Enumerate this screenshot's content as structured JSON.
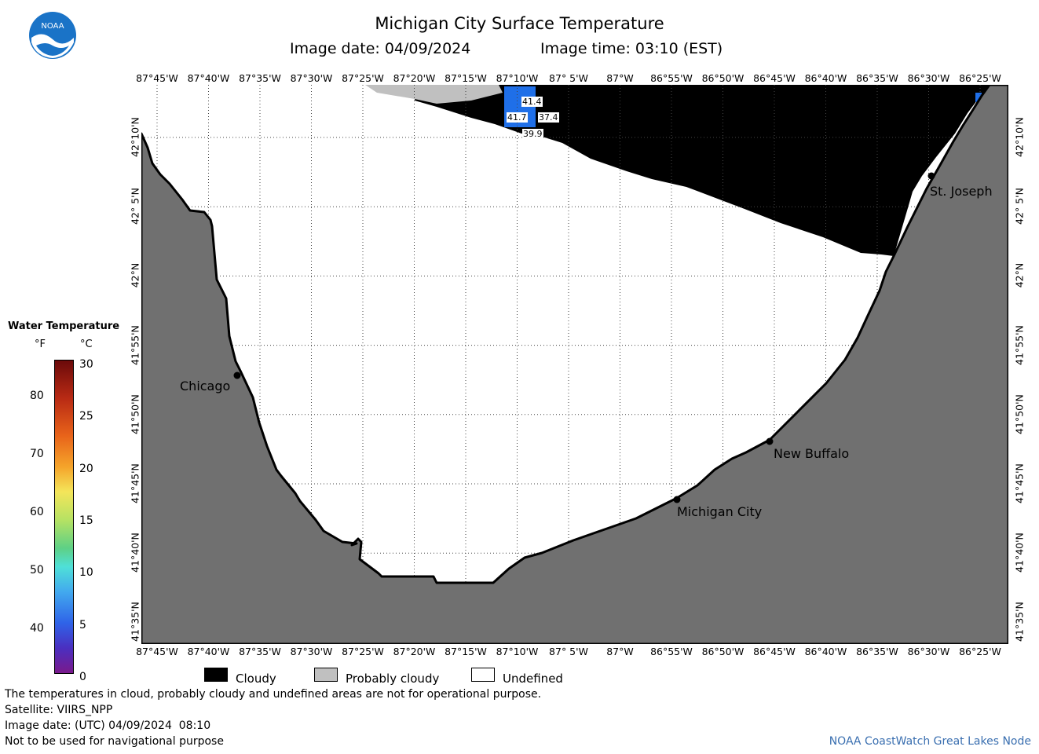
{
  "title": "Michigan City Surface Temperature",
  "image_date_label": "Image date: 04/09/2024",
  "image_time_label": "Image time: 03:10 (EST)",
  "lon_ticks": [
    "87°45'W",
    "87°40'W",
    "87°35'W",
    "87°30'W",
    "87°25'W",
    "87°20'W",
    "87°15'W",
    "87°10'W",
    "87° 5'W",
    "87°W",
    "86°55'W",
    "86°50'W",
    "86°45'W",
    "86°40'W",
    "86°35'W",
    "86°30'W",
    "86°25'W"
  ],
  "lat_ticks": [
    "42°10'N",
    "42° 5'N",
    "42°N",
    "41°55'N",
    "41°50'N",
    "41°45'N",
    "41°40'N",
    "41°35'N"
  ],
  "cities": {
    "chicago": "Chicago",
    "st_joseph": "St. Joseph",
    "new_buffalo": "New Buffalo",
    "michigan_city": "Michigan City"
  },
  "sst_values": [
    "41.4",
    "41.7",
    "37.4",
    "39.9"
  ],
  "colorbar": {
    "title": "Water Temperature",
    "unit_f": "°F",
    "unit_c": "°C",
    "f_ticks": [
      "80",
      "70",
      "60",
      "50",
      "40"
    ],
    "c_ticks": [
      "30",
      "25",
      "20",
      "15",
      "10",
      "5",
      "0"
    ]
  },
  "legend": {
    "cloudy": "Cloudy",
    "probably_cloudy": "Probably cloudy",
    "undefined": "Undefined"
  },
  "footer": {
    "disclaimer": "The temperatures in cloud, probably cloudy and undefined areas are not for operational purpose.",
    "satellite": "Satellite: VIIRS_NPP",
    "utc_date": "Image date: (UTC) 04/09/2024  08:10",
    "nav_warning": "Not to be used for navigational purpose",
    "credit": "NOAA CoastWatch Great Lakes Node"
  },
  "logo_text": "NOAA",
  "colors": {
    "land": "#707070",
    "cloud": "#000000",
    "probably_cloudy": "#c0c0c0",
    "undefined": "#ffffff",
    "sst_blue": "#1f6fe8",
    "credit_blue": "#3a6fb0"
  }
}
